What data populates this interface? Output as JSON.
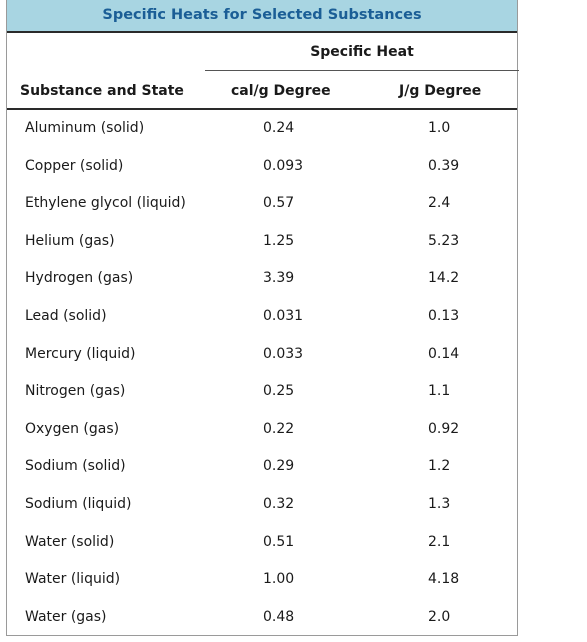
{
  "table": {
    "caption": "Specific Heats for Selected Substances",
    "group_header": "Specific Heat",
    "columns": [
      "Substance and State",
      "cal/g Degree",
      "J/g Degree"
    ],
    "rows": [
      [
        "Aluminum (solid)",
        "0.24",
        "1.0"
      ],
      [
        "Copper (solid)",
        "0.093",
        "0.39"
      ],
      [
        "Ethylene glycol (liquid)",
        "0.57",
        "2.4"
      ],
      [
        "Helium (gas)",
        "1.25",
        "5.23"
      ],
      [
        "Hydrogen (gas)",
        "3.39",
        "14.2"
      ],
      [
        "Lead (solid)",
        "0.031",
        "0.13"
      ],
      [
        "Mercury (liquid)",
        "0.033",
        "0.14"
      ],
      [
        "Nitrogen (gas)",
        "0.25",
        "1.1"
      ],
      [
        "Oxygen (gas)",
        "0.22",
        "0.92"
      ],
      [
        "Sodium (solid)",
        "0.29",
        "1.2"
      ],
      [
        "Sodium (liquid)",
        "0.32",
        "1.3"
      ],
      [
        "Water (solid)",
        "0.51",
        "2.1"
      ],
      [
        "Water (liquid)",
        "1.00",
        "4.18"
      ],
      [
        "Water (gas)",
        "0.48",
        "2.0"
      ]
    ]
  },
  "colors": {
    "caption_background": "#a8d5e2",
    "caption_text": "#1b5e96",
    "rule": "#2a2a2a",
    "border": "#9a9a9a"
  }
}
